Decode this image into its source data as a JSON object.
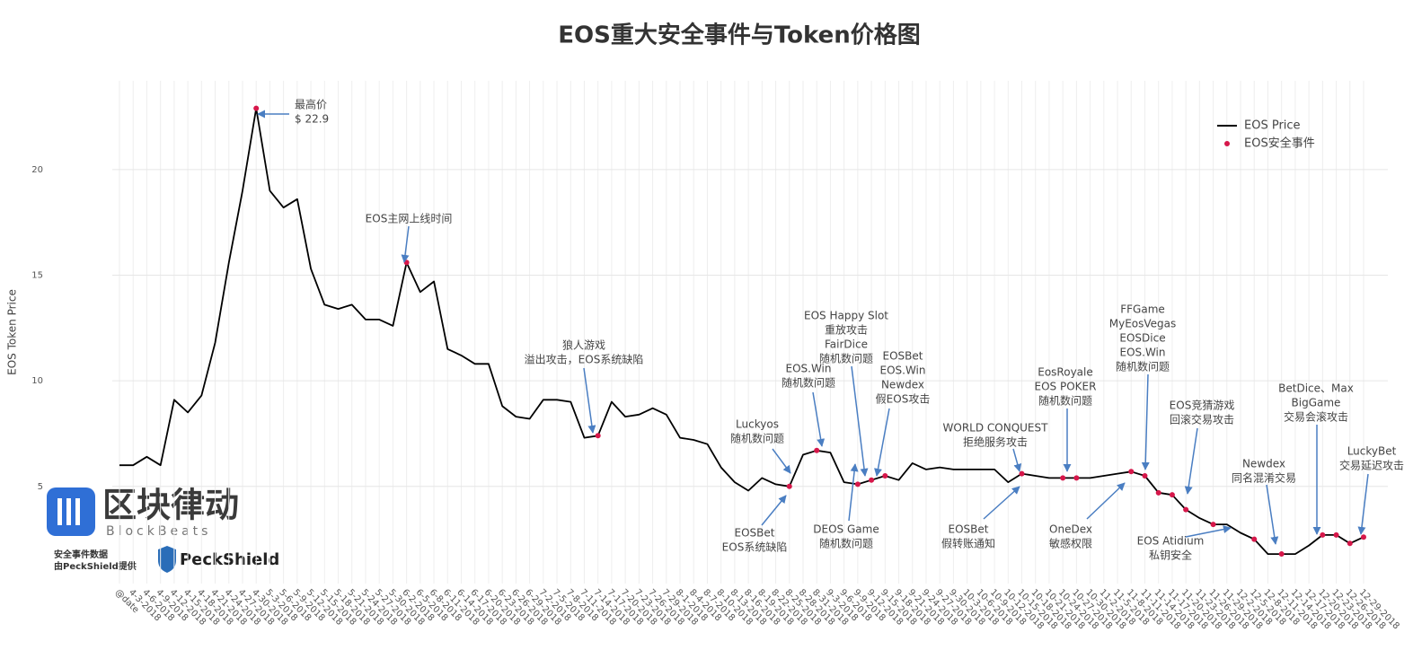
{
  "chart_data": {
    "type": "line",
    "title": "EOS重大安全事件与Token价格图",
    "ylabel": "EOS Token Price",
    "categories": [
      "@date",
      "4-3-2018",
      "4-6-2018",
      "4-9-2018",
      "4-12-2018",
      "4-15-2018",
      "4-18-2018",
      "4-21-2018",
      "4-24-2018",
      "4-27-2018",
      "4-30-2018",
      "5-3-2018",
      "5-6-2018",
      "5-9-2018",
      "5-12-2018",
      "5-15-2018",
      "5-18-2018",
      "5-21-2018",
      "5-24-2018",
      "5-27-2018",
      "5-30-2018",
      "6-2-2018",
      "6-5-2018",
      "6-8-2018",
      "6-11-2018",
      "6-14-2018",
      "6-17-2018",
      "6-20-2018",
      "6-23-2018",
      "6-26-2018",
      "6-29-2018",
      "7-2-2018",
      "7-5-2018",
      "7-8-2018",
      "7-11-2018",
      "7-14-2018",
      "7-17-2018",
      "7-20-2018",
      "7-23-2018",
      "7-26-2018",
      "7-29-2018",
      "8-1-2018",
      "8-4-2018",
      "8-7-2018",
      "8-10-2018",
      "8-13-2018",
      "8-16-2018",
      "8-19-2018",
      "8-22-2018",
      "8-25-2018",
      "8-28-2018",
      "8-31-2018",
      "9-3-2018",
      "9-6-2018",
      "9-9-2018",
      "9-12-2018",
      "9-15-2018",
      "9-18-2018",
      "9-21-2018",
      "9-24-2018",
      "9-27-2018",
      "9-30-2018",
      "10-3-2018",
      "10-6-2018",
      "10-9-2018",
      "10-12-2018",
      "10-15-2018",
      "10-18-2018",
      "10-21-2018",
      "10-24-2018",
      "10-27-2018",
      "10-30-2018",
      "11-2-2018",
      "11-5-2018",
      "11-8-2018",
      "11-11-2018",
      "11-14-2018",
      "11-17-2018",
      "11-20-2018",
      "11-23-2018",
      "11-26-2018",
      "11-29-2018",
      "12-2-2018",
      "12-5-2018",
      "12-8-2018",
      "12-11-2018",
      "12-14-2018",
      "12-17-2018",
      "12-20-2018",
      "12-23-2018",
      "12-26-2018",
      "12-29-2018"
    ],
    "series": [
      {
        "name": "EOS Price",
        "color": "#000000",
        "values": [
          6.0,
          6.0,
          6.4,
          6.0,
          9.1,
          8.5,
          9.3,
          11.8,
          15.6,
          19.0,
          22.9,
          19.0,
          18.2,
          18.6,
          15.3,
          13.6,
          13.4,
          13.6,
          12.9,
          12.9,
          12.6,
          15.6,
          14.2,
          14.7,
          11.5,
          11.2,
          10.8,
          10.8,
          8.8,
          8.3,
          8.2,
          9.1,
          9.1,
          9.0,
          7.3,
          7.4,
          9.0,
          8.3,
          8.4,
          8.7,
          8.4,
          7.3,
          7.2,
          7.0,
          5.9,
          5.2,
          4.8,
          5.4,
          5.1,
          5.0,
          6.5,
          6.7,
          6.6,
          5.2,
          5.1,
          5.3,
          5.5,
          5.3,
          6.1,
          5.8,
          5.9,
          5.8,
          5.8,
          5.8,
          5.8,
          5.2,
          5.6,
          5.5,
          5.4,
          5.4,
          5.4,
          5.4,
          5.5,
          5.6,
          5.7,
          5.5,
          4.7,
          4.6,
          3.9,
          3.5,
          3.2,
          3.2,
          2.8,
          2.5,
          1.8,
          1.8,
          1.8,
          2.2,
          2.7,
          2.7,
          2.3,
          2.6
        ]
      },
      {
        "name": "EOS安全事件",
        "color": "#d6174a",
        "marker": true,
        "values": [
          null,
          null,
          null,
          null,
          null,
          null,
          null,
          null,
          null,
          null,
          22.9,
          null,
          null,
          null,
          null,
          null,
          null,
          null,
          null,
          null,
          null,
          15.6,
          null,
          null,
          null,
          null,
          null,
          null,
          null,
          null,
          null,
          null,
          null,
          null,
          null,
          7.4,
          null,
          null,
          null,
          null,
          null,
          null,
          null,
          null,
          null,
          null,
          null,
          null,
          null,
          5.0,
          null,
          6.7,
          null,
          null,
          5.1,
          5.3,
          5.5,
          null,
          null,
          null,
          null,
          null,
          null,
          null,
          null,
          null,
          5.6,
          null,
          null,
          5.4,
          5.4,
          null,
          null,
          null,
          5.7,
          5.5,
          4.7,
          4.6,
          3.9,
          null,
          3.2,
          null,
          null,
          2.5,
          null,
          1.8,
          null,
          null,
          2.7,
          2.7,
          2.3,
          2.6
        ]
      }
    ],
    "ylim": [
      0.4,
      24.2
    ],
    "yticks": [
      5,
      10,
      15,
      20
    ],
    "grid": true,
    "legend": "top-right",
    "annotations": [
      {
        "lines": [
          "最高价",
          "$ 22.9"
        ]
      },
      {
        "lines": [
          "EOS主网上线时间"
        ]
      },
      {
        "lines": [
          "狼人游戏",
          "溢出攻击，EOS系统缺陷"
        ]
      },
      {
        "lines": [
          "Luckyos",
          "随机数问题"
        ]
      },
      {
        "lines": [
          "EOS.Win",
          "随机数问题"
        ]
      },
      {
        "lines": [
          "EOS Happy Slot",
          "重放攻击",
          "FairDice",
          "随机数问题"
        ]
      },
      {
        "lines": [
          "EOSBet",
          "EOS.Win",
          "Newdex",
          "假EOS攻击"
        ]
      },
      {
        "lines": [
          "WORLD CONQUEST",
          "拒绝服务攻击"
        ]
      },
      {
        "lines": [
          "EosRoyale",
          "EOS POKER",
          "随机数问题"
        ]
      },
      {
        "lines": [
          "FFGame",
          "MyEosVegas",
          "EOSDice",
          "EOS.Win",
          "随机数问题"
        ]
      },
      {
        "lines": [
          "EOS竞猜游戏",
          "回滚交易攻击"
        ]
      },
      {
        "lines": [
          "BetDice、Max",
          "BigGame",
          "交易会滚攻击"
        ]
      },
      {
        "lines": [
          "Newdex",
          "同名混淆交易"
        ]
      },
      {
        "lines": [
          "LuckyBet",
          "交易延迟攻击"
        ]
      },
      {
        "lines": [
          "EOSBet",
          "EOS系统缺陷"
        ]
      },
      {
        "lines": [
          "DEOS Game",
          "随机数问题"
        ]
      },
      {
        "lines": [
          "EOSBet",
          "假转账通知"
        ]
      },
      {
        "lines": [
          "OneDex",
          "敏感权限"
        ]
      },
      {
        "lines": [
          "EOS Atidium",
          "私钥安全"
        ]
      }
    ]
  },
  "branding": {
    "logo": "区块律动",
    "logo_sub": "BlockBeats",
    "note": [
      "安全事件数据",
      "由PeckShield提供"
    ],
    "partner": "PeckShield"
  }
}
